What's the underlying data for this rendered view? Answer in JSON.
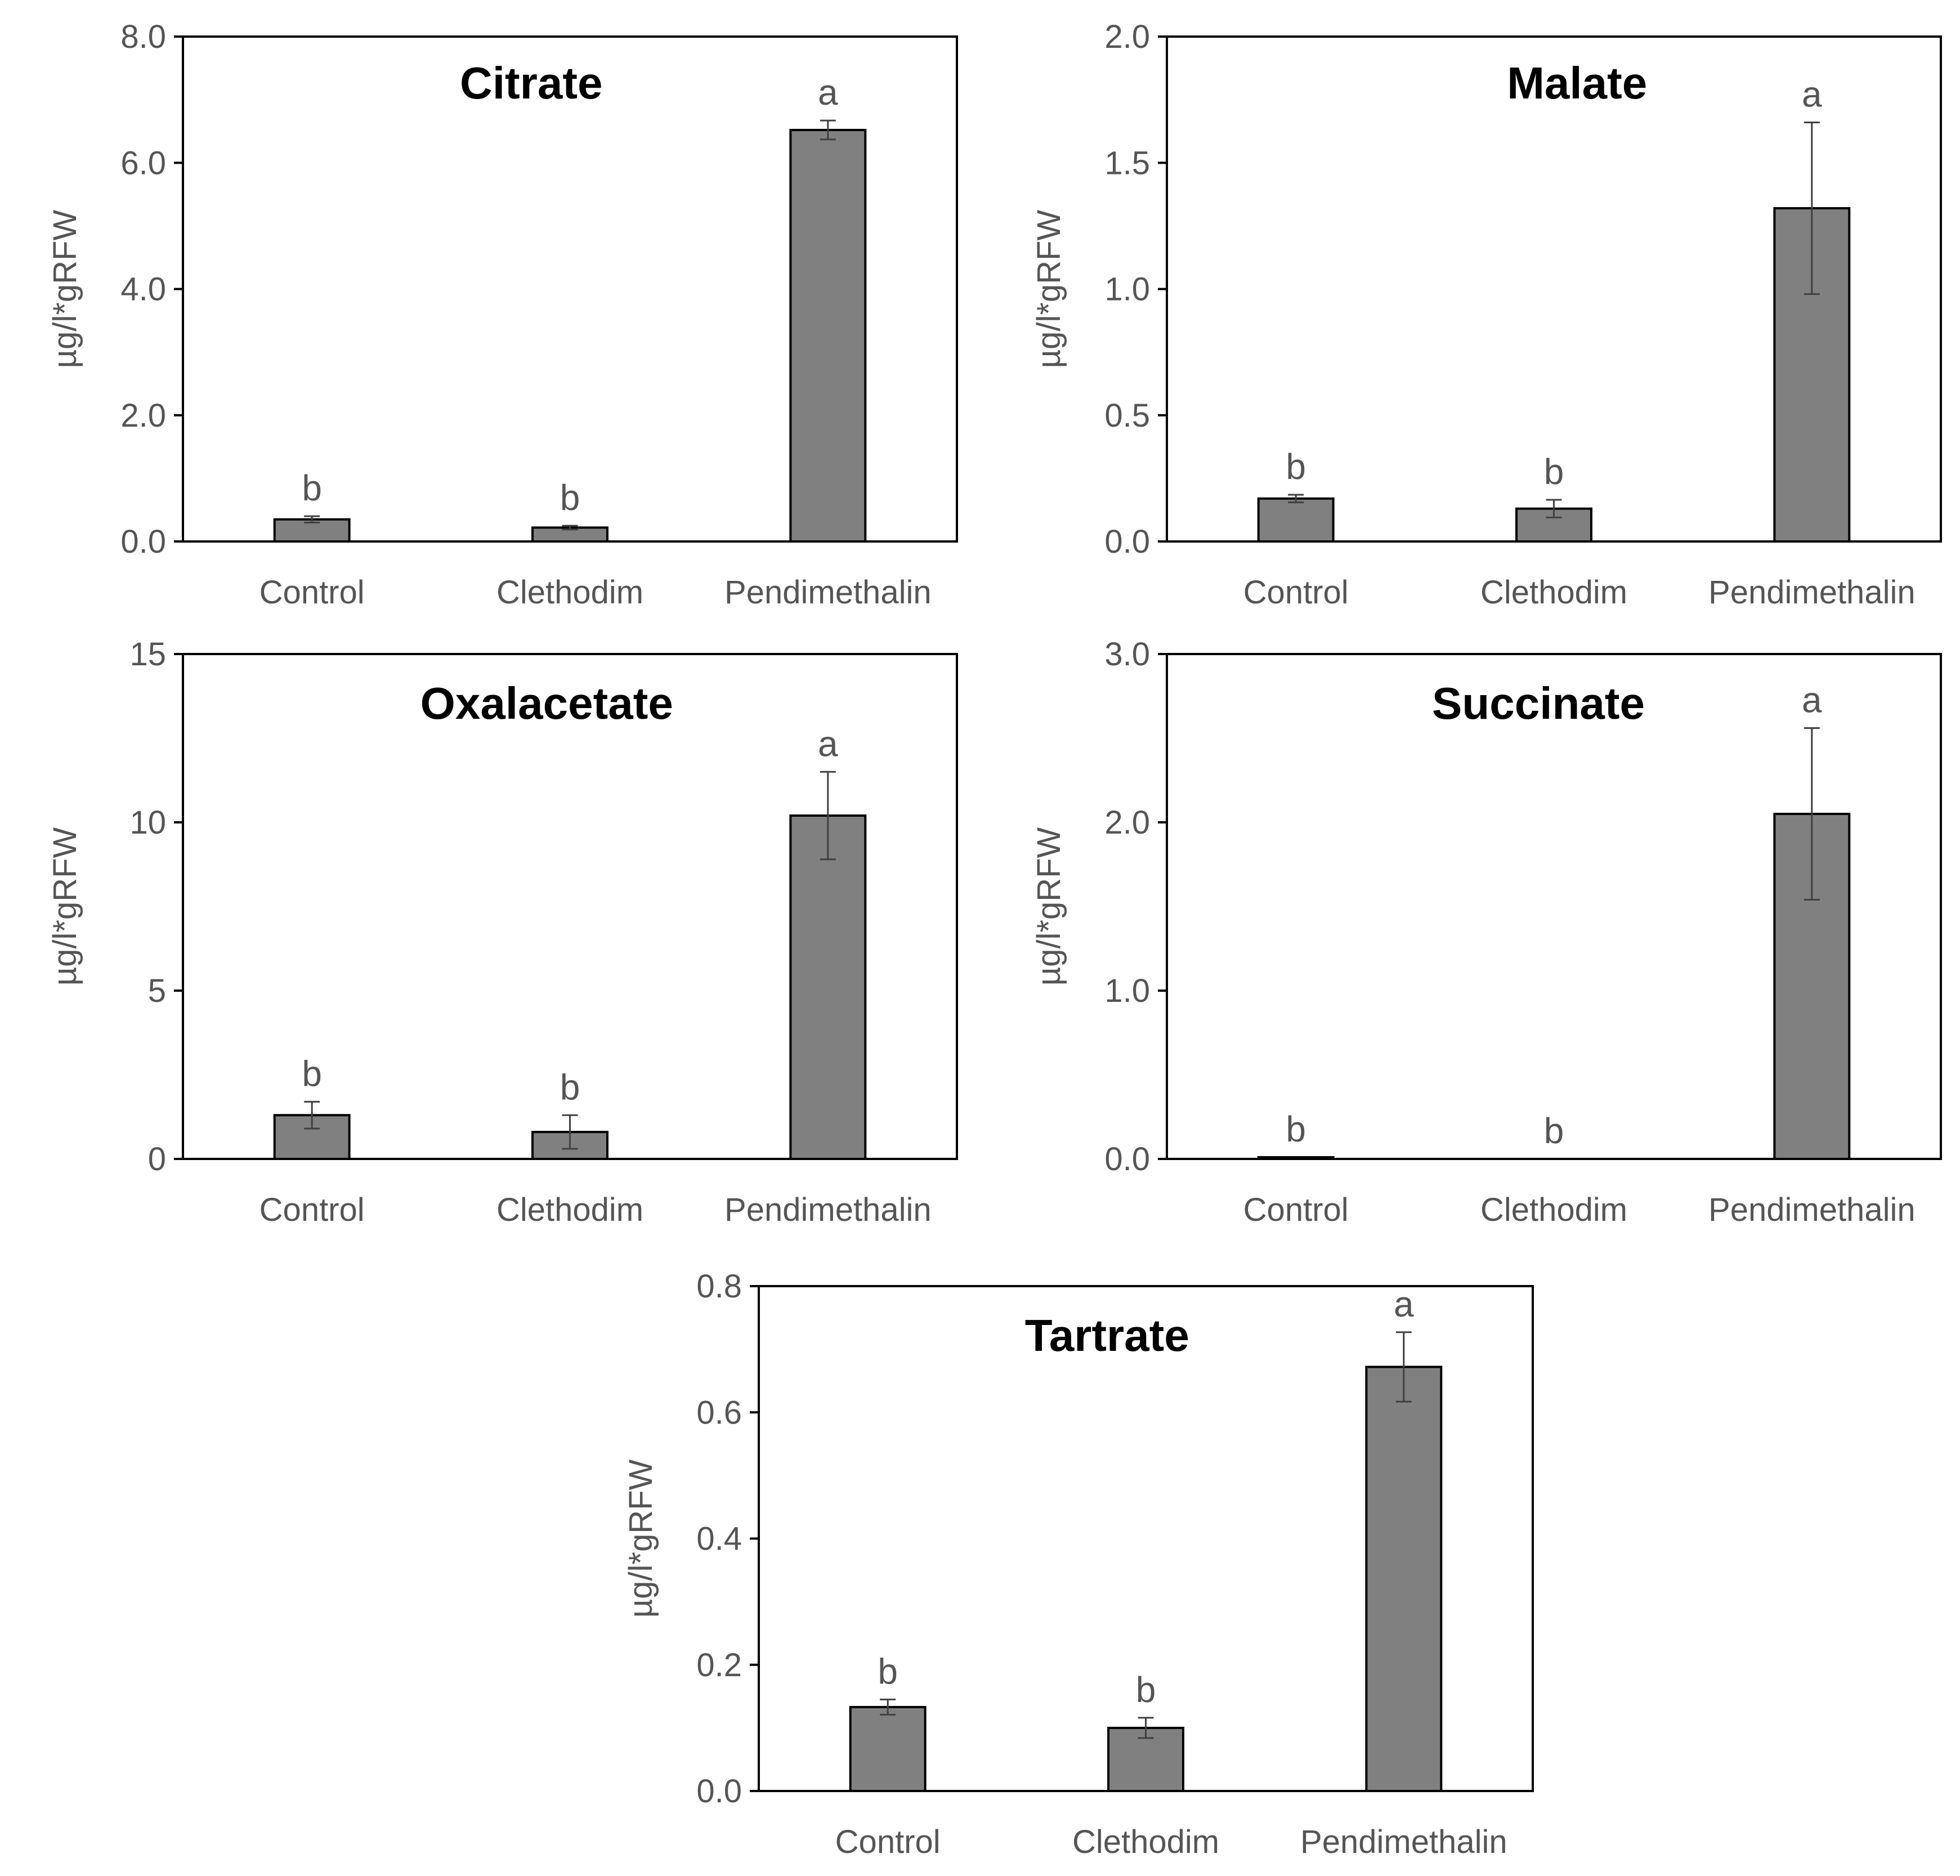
{
  "colors": {
    "bar_fill": "#808080",
    "bar_stroke": "#000000",
    "axis": "#000000",
    "text": "#555555",
    "title": "#000000",
    "error_bar": "#404040"
  },
  "chart_data": [
    {
      "type": "bar",
      "title": "Citrate",
      "ylabel": "µg/l*gRFW",
      "xlabel": "",
      "categories": [
        "Control",
        "Clethodim",
        "Pendimethalin"
      ],
      "values": [
        0.35,
        0.22,
        6.52
      ],
      "errors": [
        0.05,
        0.03,
        0.15
      ],
      "significance": [
        "b",
        "b",
        "a"
      ],
      "ylim": [
        0,
        8
      ],
      "yticks": [
        "0.0",
        "2.0",
        "4.0",
        "6.0",
        "8.0"
      ]
    },
    {
      "type": "bar",
      "title": "Malate",
      "ylabel": "µg/l*gRFW",
      "xlabel": "",
      "categories": [
        "Control",
        "Clethodim",
        "Pendimethalin"
      ],
      "values": [
        0.17,
        0.13,
        1.32
      ],
      "errors": [
        0.015,
        0.035,
        0.34
      ],
      "significance": [
        "b",
        "b",
        "a"
      ],
      "ylim": [
        0,
        2
      ],
      "yticks": [
        "0.0",
        "0.5",
        "1.0",
        "1.5",
        "2.0"
      ]
    },
    {
      "type": "bar",
      "title": "Oxalacetate",
      "ylabel": "µg/l*gRFW",
      "xlabel": "",
      "categories": [
        "Control",
        "Clethodim",
        "Pendimethalin"
      ],
      "values": [
        1.3,
        0.8,
        10.2
      ],
      "errors": [
        0.4,
        0.5,
        1.3
      ],
      "significance": [
        "b",
        "b",
        "a"
      ],
      "ylim": [
        0,
        15
      ],
      "yticks": [
        "0",
        "5",
        "10",
        "15"
      ]
    },
    {
      "type": "bar",
      "title": "Succinate",
      "ylabel": "µg/l*gRFW",
      "xlabel": "",
      "categories": [
        "Control",
        "Clethodim",
        "Pendimethalin"
      ],
      "values": [
        0.01,
        0.0,
        2.05
      ],
      "errors": [
        0.0,
        0.0,
        0.51
      ],
      "significance": [
        "b",
        "b",
        "a"
      ],
      "ylim": [
        0,
        3
      ],
      "yticks": [
        "0.0",
        "1.0",
        "2.0",
        "3.0"
      ]
    },
    {
      "type": "bar",
      "title": "Tartrate",
      "ylabel": "µg/l*gRFW",
      "xlabel": "",
      "categories": [
        "Control",
        "Clethodim",
        "Pendimethalin"
      ],
      "values": [
        0.133,
        0.1,
        0.672
      ],
      "errors": [
        0.012,
        0.016,
        0.055
      ],
      "significance": [
        "b",
        "b",
        "a"
      ],
      "ylim": [
        0,
        0.8
      ],
      "yticks": [
        "0.0",
        "0.2",
        "0.4",
        "0.6",
        "0.8"
      ]
    }
  ]
}
